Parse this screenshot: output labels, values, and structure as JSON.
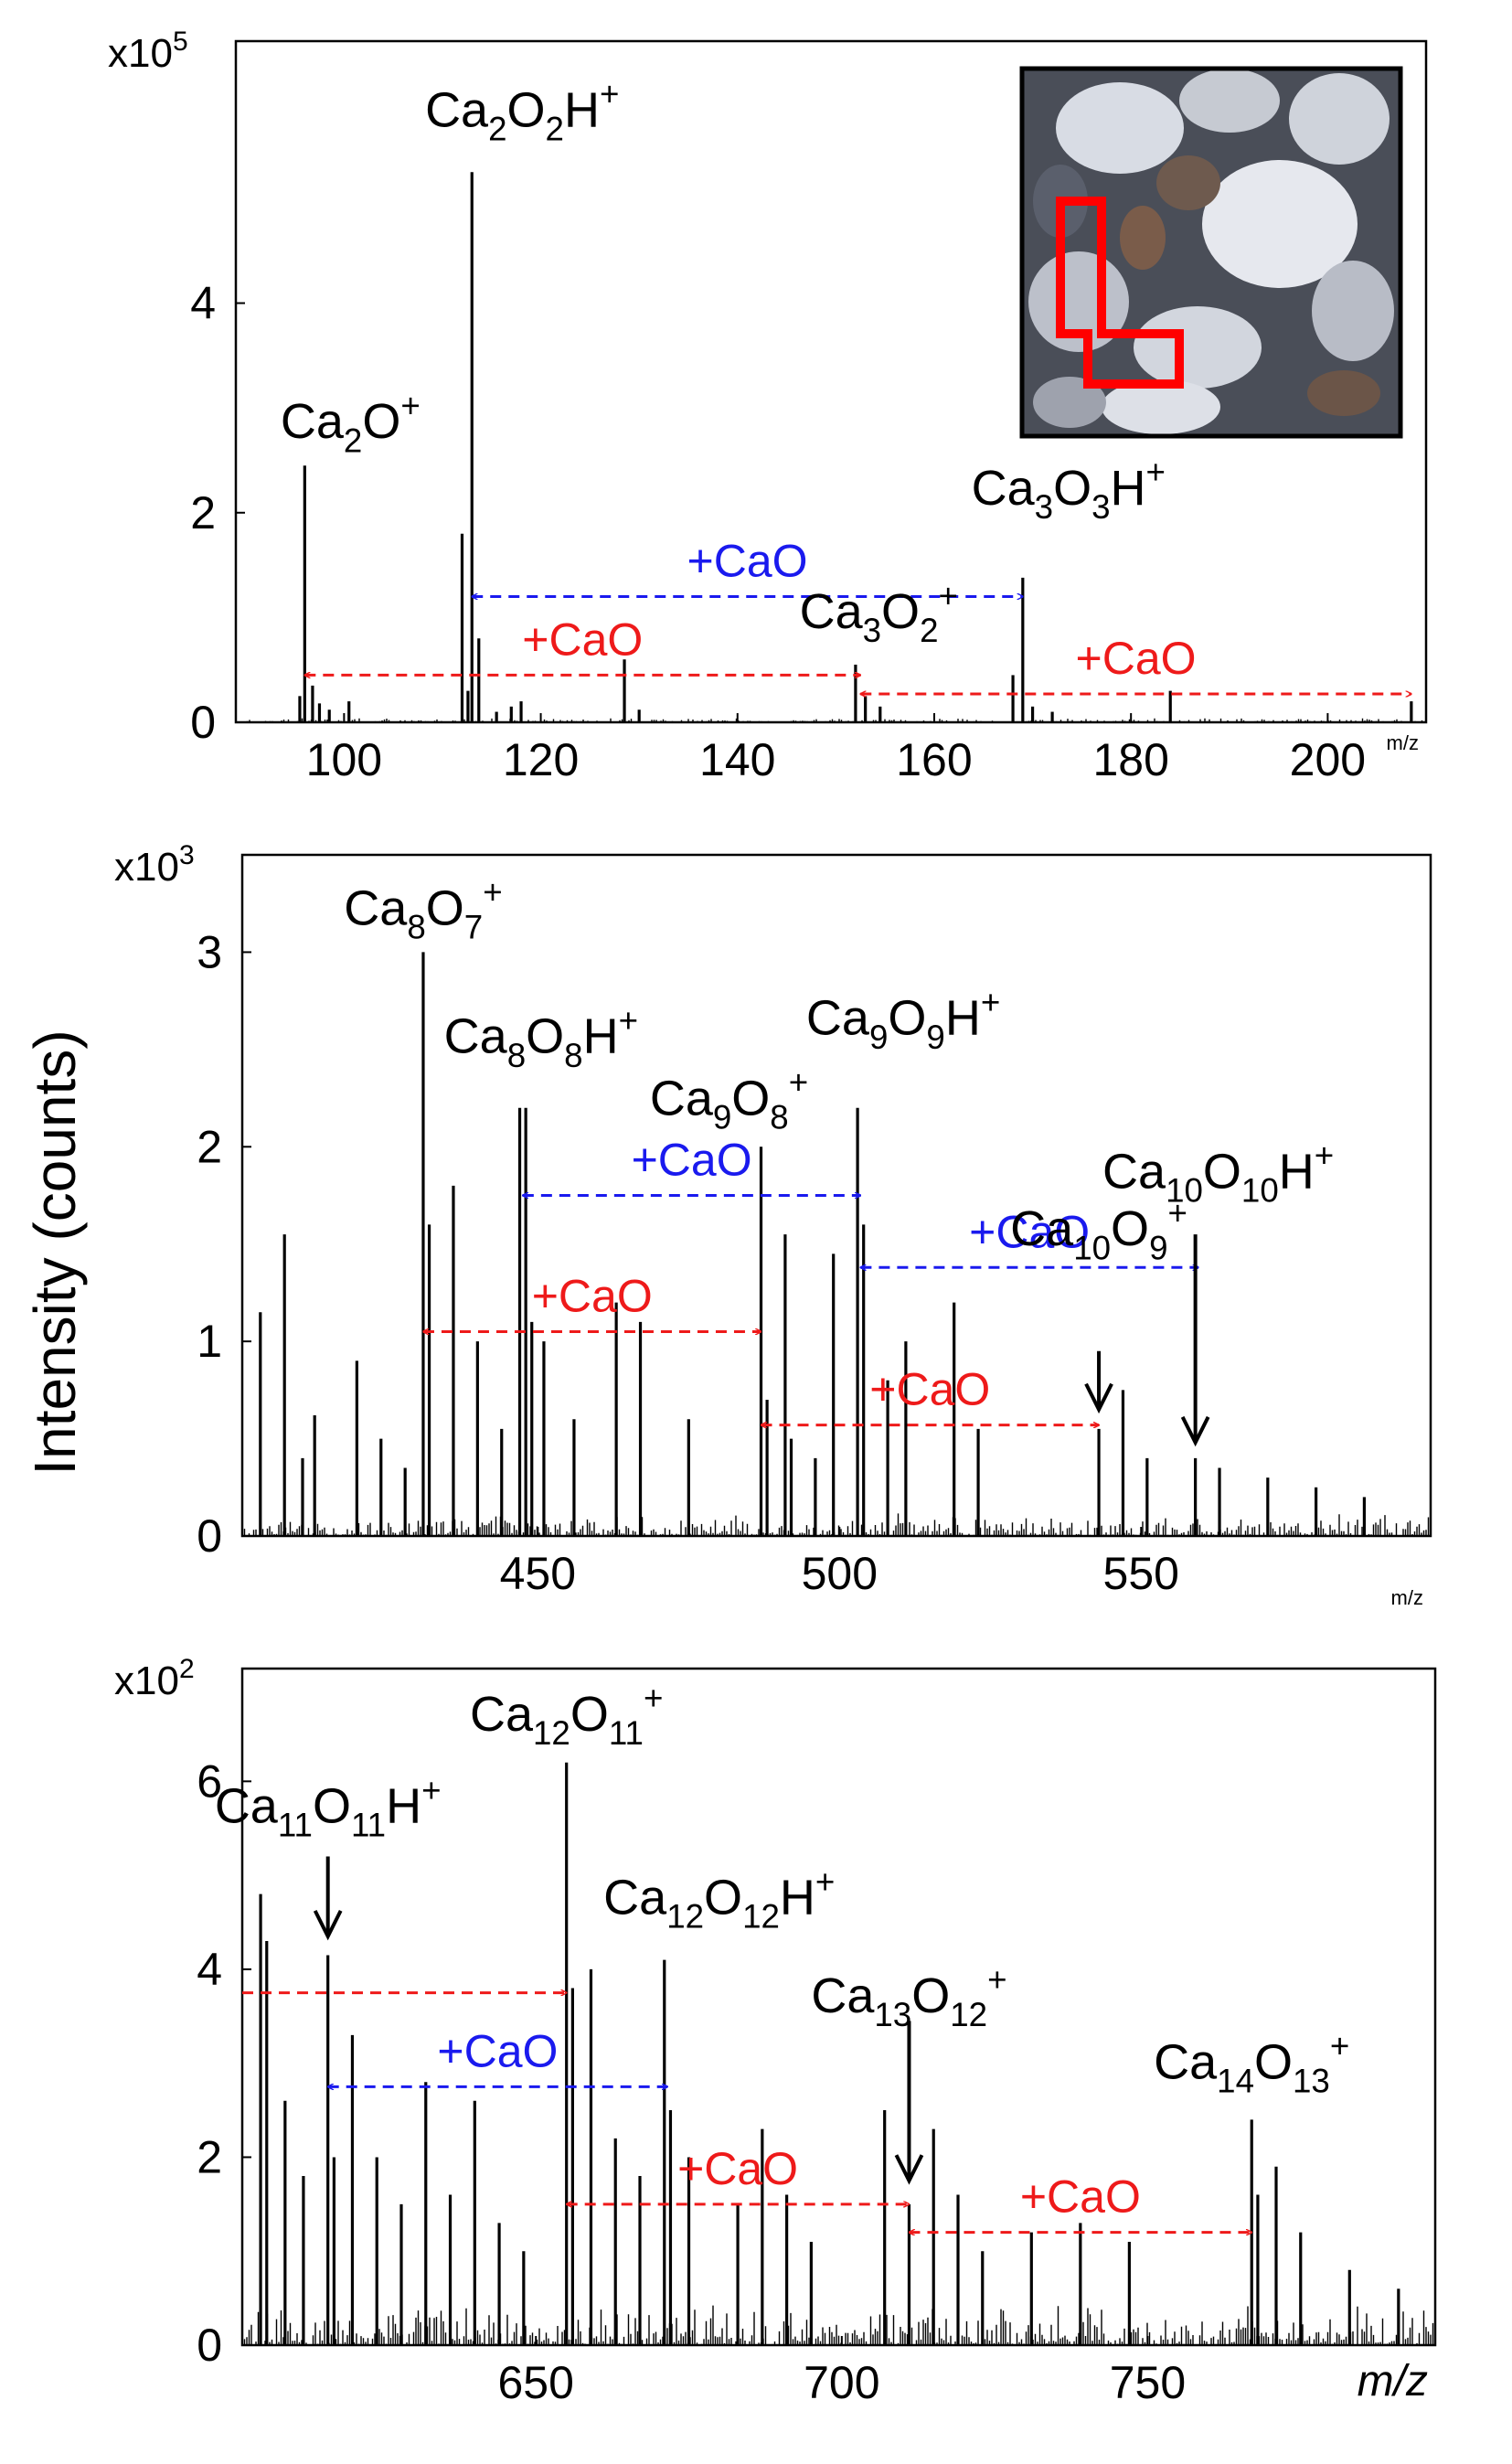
{
  "figure": {
    "ylabel": "Intensity (counts)",
    "colors": {
      "blue": "#1a1aee",
      "red": "#ee1a1a",
      "black": "#000000"
    }
  },
  "chart_data": [
    {
      "type": "bar",
      "multiplier_label": "x10",
      "multiplier_exp": "5",
      "xlabel": "m/z",
      "xlim": [
        89,
        210
      ],
      "ylim": [
        0,
        6.5
      ],
      "x_ticks": [
        100,
        120,
        140,
        160,
        180,
        200
      ],
      "y_ticks": [
        0,
        2,
        4
      ],
      "peaks": [
        {
          "x": 95.5,
          "y": 0.25
        },
        {
          "x": 96.0,
          "y": 2.45
        },
        {
          "x": 96.8,
          "y": 0.35
        },
        {
          "x": 97.5,
          "y": 0.18
        },
        {
          "x": 98.5,
          "y": 0.12
        },
        {
          "x": 100.5,
          "y": 0.2
        },
        {
          "x": 112.0,
          "y": 1.8
        },
        {
          "x": 112.6,
          "y": 0.3
        },
        {
          "x": 113.0,
          "y": 5.25
        },
        {
          "x": 113.7,
          "y": 0.8
        },
        {
          "x": 115.5,
          "y": 0.1
        },
        {
          "x": 117.0,
          "y": 0.15
        },
        {
          "x": 118.0,
          "y": 0.2
        },
        {
          "x": 128.5,
          "y": 0.6
        },
        {
          "x": 130.0,
          "y": 0.12
        },
        {
          "x": 152.0,
          "y": 0.55
        },
        {
          "x": 153.0,
          "y": 0.25
        },
        {
          "x": 154.5,
          "y": 0.15
        },
        {
          "x": 168.0,
          "y": 0.45
        },
        {
          "x": 169.0,
          "y": 1.38
        },
        {
          "x": 170.0,
          "y": 0.15
        },
        {
          "x": 172.0,
          "y": 0.1
        },
        {
          "x": 184.0,
          "y": 0.3
        },
        {
          "x": 208.5,
          "y": 0.2
        }
      ],
      "labels": [
        {
          "base": "Ca",
          "sub1": "2",
          "mid": "O",
          "sub2": "",
          "tail": "",
          "sup": "+",
          "x": 96.0,
          "y": 2.45
        },
        {
          "base": "Ca",
          "sub1": "2",
          "mid": "O",
          "sub2": "2",
          "tail": "H",
          "sup": "+",
          "x": 113.0,
          "y": 5.25
        },
        {
          "base": "Ca",
          "sub1": "3",
          "mid": "O",
          "sub2": "3",
          "tail": "H",
          "sup": "+",
          "x": 169.0,
          "y": 1.38
        },
        {
          "base": "Ca",
          "sub1": "3",
          "mid": "O",
          "sub2": "2",
          "tail": "",
          "sup": "+",
          "x": 152.5,
          "y": 0.55
        }
      ],
      "spans": [
        {
          "text": "+CaO",
          "color": "blue",
          "x1": 113.0,
          "x2": 169.0,
          "y": 1.2
        },
        {
          "text": "+CaO",
          "color": "red",
          "x1": 96.0,
          "x2": 152.5,
          "y": 0.45
        },
        {
          "text": "+CaO",
          "color": "red",
          "x1": 152.5,
          "x2": 208.5,
          "y": 0.27
        }
      ],
      "arrows": []
    },
    {
      "type": "bar",
      "multiplier_label": "x10",
      "multiplier_exp": "3",
      "xlabel": "m/z",
      "xlim": [
        401,
        598
      ],
      "ylim": [
        0,
        3.5
      ],
      "x_ticks": [
        450,
        500,
        550
      ],
      "y_ticks": [
        0,
        1,
        2,
        3
      ],
      "peaks": [
        {
          "x": 404,
          "y": 1.15
        },
        {
          "x": 408,
          "y": 1.55
        },
        {
          "x": 411,
          "y": 0.4
        },
        {
          "x": 413,
          "y": 0.62
        },
        {
          "x": 420,
          "y": 0.9
        },
        {
          "x": 424,
          "y": 0.5
        },
        {
          "x": 428,
          "y": 0.35
        },
        {
          "x": 431,
          "y": 3.0
        },
        {
          "x": 432,
          "y": 1.6
        },
        {
          "x": 436,
          "y": 1.8
        },
        {
          "x": 440,
          "y": 1.0
        },
        {
          "x": 444,
          "y": 0.55
        },
        {
          "x": 447,
          "y": 2.2
        },
        {
          "x": 448,
          "y": 2.2
        },
        {
          "x": 449,
          "y": 1.1
        },
        {
          "x": 451,
          "y": 1.0
        },
        {
          "x": 456,
          "y": 0.6
        },
        {
          "x": 463,
          "y": 1.2
        },
        {
          "x": 467,
          "y": 1.1
        },
        {
          "x": 475,
          "y": 0.6
        },
        {
          "x": 487,
          "y": 2.0
        },
        {
          "x": 488,
          "y": 0.7
        },
        {
          "x": 491,
          "y": 1.55
        },
        {
          "x": 492,
          "y": 0.5
        },
        {
          "x": 496,
          "y": 0.4
        },
        {
          "x": 499,
          "y": 1.45
        },
        {
          "x": 503,
          "y": 2.2
        },
        {
          "x": 504,
          "y": 1.6
        },
        {
          "x": 508,
          "y": 0.8
        },
        {
          "x": 511,
          "y": 1.0
        },
        {
          "x": 519,
          "y": 1.2
        },
        {
          "x": 523,
          "y": 0.55
        },
        {
          "x": 543,
          "y": 0.55
        },
        {
          "x": 547,
          "y": 0.75
        },
        {
          "x": 551,
          "y": 0.4
        },
        {
          "x": 559,
          "y": 0.4
        },
        {
          "x": 563,
          "y": 0.35
        },
        {
          "x": 571,
          "y": 0.3
        },
        {
          "x": 579,
          "y": 0.25
        },
        {
          "x": 587,
          "y": 0.2
        }
      ],
      "labels": [
        {
          "base": "Ca",
          "sub1": "8",
          "mid": "O",
          "sub2": "7",
          "tail": "",
          "sup": "+",
          "x": 431,
          "y": 3.0
        },
        {
          "base": "Ca",
          "sub1": "8",
          "mid": "O",
          "sub2": "8",
          "tail": "H",
          "sup": "+",
          "x": 447.5,
          "y": 2.2
        },
        {
          "base": "Ca",
          "sub1": "9",
          "mid": "O",
          "sub2": "8",
          "tail": "",
          "sup": "+",
          "x": 487,
          "y": 2.0
        },
        {
          "base": "Ca",
          "sub1": "9",
          "mid": "O",
          "sub2": "9",
          "tail": "H",
          "sup": "+",
          "x": 503,
          "y": 2.2
        },
        {
          "base": "Ca",
          "sub1": "10",
          "mid": "O",
          "sub2": "10",
          "tail": "H",
          "sup": "+",
          "x": 559,
          "y": 1.6
        },
        {
          "base": "Ca",
          "sub1": "10",
          "mid": "O",
          "sub2": "9",
          "tail": "",
          "sup": "+",
          "x": 543,
          "y": 1.0
        }
      ],
      "spans": [
        {
          "text": "+CaO",
          "color": "blue",
          "x1": 447.5,
          "x2": 503.5,
          "y": 1.75
        },
        {
          "text": "+CaO",
          "color": "blue",
          "x1": 503.5,
          "x2": 559.5,
          "y": 1.38
        },
        {
          "text": "+CaO",
          "color": "red",
          "x1": 431,
          "x2": 487,
          "y": 1.05
        },
        {
          "text": "+CaO",
          "color": "red",
          "x1": 487,
          "x2": 543,
          "y": 0.57
        }
      ],
      "arrows": [
        {
          "x": 543,
          "y_from": 0.95,
          "y_to": 0.65
        },
        {
          "x": 559,
          "y_from": 1.55,
          "y_to": 0.48
        }
      ]
    },
    {
      "type": "bar",
      "multiplier_label": "x10",
      "multiplier_exp": "2",
      "xlabel": "m/z",
      "xlim": [
        602,
        797
      ],
      "ylim": [
        0,
        7.2
      ],
      "x_ticks": [
        650,
        700,
        750
      ],
      "y_ticks": [
        0,
        2,
        4,
        6
      ],
      "peaks": [
        {
          "x": 605,
          "y": 4.8
        },
        {
          "x": 606,
          "y": 4.3
        },
        {
          "x": 609,
          "y": 2.6
        },
        {
          "x": 612,
          "y": 1.8
        },
        {
          "x": 616,
          "y": 4.15
        },
        {
          "x": 617,
          "y": 2.0
        },
        {
          "x": 620,
          "y": 3.3
        },
        {
          "x": 624,
          "y": 2.0
        },
        {
          "x": 628,
          "y": 1.5
        },
        {
          "x": 632,
          "y": 2.8
        },
        {
          "x": 636,
          "y": 1.6
        },
        {
          "x": 640,
          "y": 2.6
        },
        {
          "x": 644,
          "y": 1.3
        },
        {
          "x": 648,
          "y": 1.0
        },
        {
          "x": 655,
          "y": 6.2
        },
        {
          "x": 656,
          "y": 3.8
        },
        {
          "x": 659,
          "y": 4.0
        },
        {
          "x": 663,
          "y": 2.2
        },
        {
          "x": 667,
          "y": 1.8
        },
        {
          "x": 671,
          "y": 4.1
        },
        {
          "x": 672,
          "y": 2.5
        },
        {
          "x": 675,
          "y": 2.0
        },
        {
          "x": 683,
          "y": 1.5
        },
        {
          "x": 687,
          "y": 2.3
        },
        {
          "x": 691,
          "y": 1.6
        },
        {
          "x": 695,
          "y": 1.1
        },
        {
          "x": 707,
          "y": 2.5
        },
        {
          "x": 711,
          "y": 1.5
        },
        {
          "x": 715,
          "y": 2.3
        },
        {
          "x": 719,
          "y": 1.6
        },
        {
          "x": 723,
          "y": 1.0
        },
        {
          "x": 731,
          "y": 1.2
        },
        {
          "x": 739,
          "y": 1.3
        },
        {
          "x": 747,
          "y": 1.1
        },
        {
          "x": 767,
          "y": 2.4
        },
        {
          "x": 768,
          "y": 1.6
        },
        {
          "x": 771,
          "y": 1.9
        },
        {
          "x": 775,
          "y": 1.2
        },
        {
          "x": 783,
          "y": 0.8
        },
        {
          "x": 791,
          "y": 0.6
        }
      ],
      "labels": [
        {
          "base": "Ca",
          "sub1": "11",
          "mid": "O",
          "sub2": "11",
          "tail": "H",
          "sup": "+",
          "x": 616,
          "y": 4.15
        },
        {
          "base": "Ca",
          "sub1": "12",
          "mid": "O",
          "sub2": "11",
          "tail": "",
          "sup": "+",
          "x": 655,
          "y": 6.2
        },
        {
          "base": "Ca",
          "sub1": "12",
          "mid": "O",
          "sub2": "12",
          "tail": "H",
          "sup": "+",
          "x": 671,
          "y": 4.1
        },
        {
          "base": "Ca",
          "sub1": "13",
          "mid": "O",
          "sub2": "12",
          "tail": "",
          "sup": "+",
          "x": 711,
          "y": 1.5
        },
        {
          "base": "Ca",
          "sub1": "14",
          "mid": "O",
          "sub2": "13",
          "tail": "",
          "sup": "+",
          "x": 767,
          "y": 2.4
        }
      ],
      "spans": [
        {
          "text": "",
          "color": "red",
          "x1": 602,
          "x2": 655,
          "y": 3.75
        },
        {
          "text": "+CaO",
          "color": "blue",
          "x1": 616,
          "x2": 671.5,
          "y": 2.75
        },
        {
          "text": "+CaO",
          "color": "red",
          "x1": 655,
          "x2": 711,
          "y": 1.5
        },
        {
          "text": "+CaO",
          "color": "red",
          "x1": 711,
          "x2": 767,
          "y": 1.2
        }
      ],
      "arrows": [
        {
          "x": 616,
          "y_from": 5.2,
          "y_to": 4.35
        },
        {
          "x": 711,
          "y_from": 3.45,
          "y_to": 1.75
        }
      ]
    }
  ]
}
